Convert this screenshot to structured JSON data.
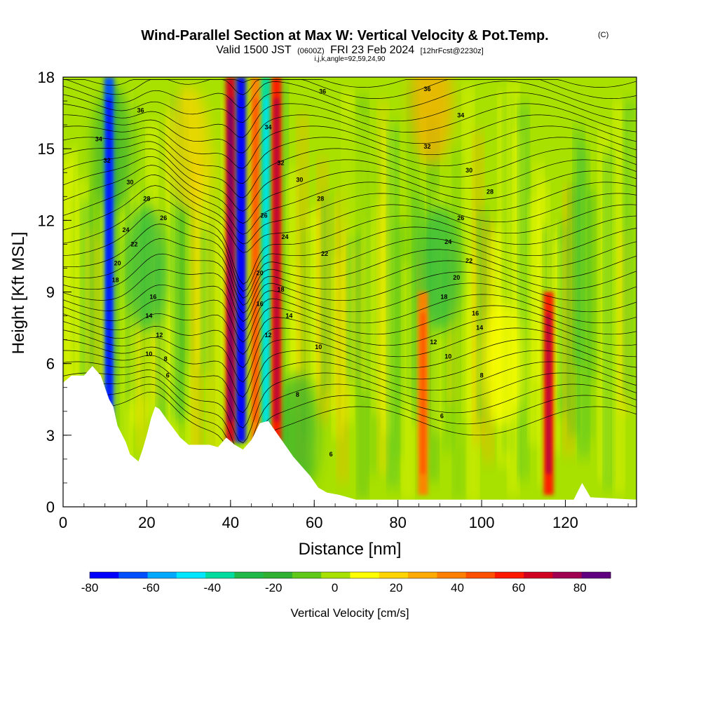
{
  "header": {
    "title": "Wind-Parallel Section at Max W: Vertical Velocity & Pot.Temp.",
    "copyright": "(C)",
    "valid_prefix": "Valid 1500 JST",
    "valid_utc": "(0600Z)",
    "valid_date": "FRI 23 Feb 2024",
    "forecast": "[12hrFcst@2230z]",
    "indices": "i,j,k,angle=92,59,24,90"
  },
  "chart_data": {
    "type": "heatmap",
    "xlabel": "Distance [nm]",
    "ylabel": "Height [Kft MSL]",
    "xlim": [
      0,
      137
    ],
    "ylim": [
      0,
      18
    ],
    "x_ticks": [
      0,
      20,
      40,
      60,
      80,
      100,
      120
    ],
    "y_ticks": [
      0,
      3,
      6,
      9,
      12,
      15,
      18
    ],
    "colorbar": {
      "title": "Vertical Velocity [cm/s]",
      "range": [
        -80,
        90
      ],
      "tick_values": [
        -80,
        -60,
        -40,
        -20,
        0,
        20,
        40,
        60,
        80
      ],
      "colors": [
        "#0000ff",
        "#0050ff",
        "#00a8ff",
        "#00e6ff",
        "#00dca0",
        "#20b848",
        "#30b030",
        "#60c818",
        "#a8e000",
        "#ffff00",
        "#ffd400",
        "#ffaa00",
        "#ff8000",
        "#ff5000",
        "#ff1800",
        "#d00020",
        "#a00050",
        "#600080"
      ]
    },
    "terrain_kft": [
      [
        0,
        5.2
      ],
      [
        2,
        5.5
      ],
      [
        5,
        5.5
      ],
      [
        7,
        5.9
      ],
      [
        9,
        5.5
      ],
      [
        11,
        4.5
      ],
      [
        12,
        4.2
      ],
      [
        13,
        3.4
      ],
      [
        15,
        2.7
      ],
      [
        16,
        2.2
      ],
      [
        18,
        1.9
      ],
      [
        19,
        2.4
      ],
      [
        20,
        3.0
      ],
      [
        21,
        3.7
      ],
      [
        22,
        4.2
      ],
      [
        23,
        4.1
      ],
      [
        25,
        3.6
      ],
      [
        28,
        2.9
      ],
      [
        30,
        2.6
      ],
      [
        35,
        2.6
      ],
      [
        37,
        2.5
      ],
      [
        39,
        2.9
      ],
      [
        41,
        2.6
      ],
      [
        43,
        2.4
      ],
      [
        45,
        2.8
      ],
      [
        47,
        3.5
      ],
      [
        49,
        3.6
      ],
      [
        51,
        3.1
      ],
      [
        53,
        2.6
      ],
      [
        55,
        2.1
      ],
      [
        57,
        1.7
      ],
      [
        59,
        1.3
      ],
      [
        61,
        0.8
      ],
      [
        63,
        0.6
      ],
      [
        66,
        0.5
      ],
      [
        70,
        0.3
      ],
      [
        122,
        0.3
      ],
      [
        124,
        1.0
      ],
      [
        126,
        0.4
      ],
      [
        137,
        0.3
      ]
    ],
    "convective_features": [
      {
        "x": 11,
        "w": -70
      },
      {
        "x": 40,
        "w": 70
      },
      {
        "x": 42.5,
        "w": -80
      },
      {
        "x": 46,
        "w": 35
      },
      {
        "x": 48.5,
        "w": -40
      },
      {
        "x": 51,
        "w": 60
      },
      {
        "x": 86,
        "w": 35
      },
      {
        "x": 116,
        "w": 60
      }
    ],
    "isentropes": {
      "units": "theta offset labels",
      "levels": [
        6,
        8,
        10,
        12,
        14,
        16,
        18,
        20,
        22,
        24,
        26,
        28,
        30,
        32,
        34,
        36
      ],
      "labels": [
        {
          "text": "36",
          "x": 18.5,
          "y": 16.6
        },
        {
          "text": "34",
          "x": 8.5,
          "y": 15.4
        },
        {
          "text": "32",
          "x": 10.5,
          "y": 14.5
        },
        {
          "text": "30",
          "x": 16,
          "y": 13.6
        },
        {
          "text": "28",
          "x": 20,
          "y": 12.9
        },
        {
          "text": "26",
          "x": 24,
          "y": 12.1
        },
        {
          "text": "24",
          "x": 15,
          "y": 11.6
        },
        {
          "text": "22",
          "x": 17,
          "y": 11.0
        },
        {
          "text": "20",
          "x": 13,
          "y": 10.2
        },
        {
          "text": "18",
          "x": 12.5,
          "y": 9.5
        },
        {
          "text": "16",
          "x": 21.5,
          "y": 8.8
        },
        {
          "text": "14",
          "x": 20.5,
          "y": 8.0
        },
        {
          "text": "12",
          "x": 23,
          "y": 7.2
        },
        {
          "text": "10",
          "x": 20.5,
          "y": 6.4
        },
        {
          "text": "8",
          "x": 24.5,
          "y": 6.2
        },
        {
          "text": "6",
          "x": 25,
          "y": 5.5
        },
        {
          "text": "34",
          "x": 49,
          "y": 15.9
        },
        {
          "text": "36",
          "x": 62,
          "y": 17.4
        },
        {
          "text": "32",
          "x": 52,
          "y": 14.4
        },
        {
          "text": "30",
          "x": 56.5,
          "y": 13.7
        },
        {
          "text": "28",
          "x": 61.5,
          "y": 12.9
        },
        {
          "text": "26",
          "x": 48,
          "y": 12.2
        },
        {
          "text": "24",
          "x": 53,
          "y": 11.3
        },
        {
          "text": "22",
          "x": 62.5,
          "y": 10.6
        },
        {
          "text": "20",
          "x": 47,
          "y": 9.8
        },
        {
          "text": "18",
          "x": 52,
          "y": 9.1
        },
        {
          "text": "16",
          "x": 47,
          "y": 8.5
        },
        {
          "text": "14",
          "x": 54,
          "y": 8.0
        },
        {
          "text": "12",
          "x": 49,
          "y": 7.2
        },
        {
          "text": "10",
          "x": 61,
          "y": 6.7
        },
        {
          "text": "8",
          "x": 56,
          "y": 4.7
        },
        {
          "text": "6",
          "x": 64,
          "y": 2.2
        },
        {
          "text": "36",
          "x": 87,
          "y": 17.5
        },
        {
          "text": "34",
          "x": 95,
          "y": 16.4
        },
        {
          "text": "32",
          "x": 87,
          "y": 15.1
        },
        {
          "text": "30",
          "x": 97,
          "y": 14.1
        },
        {
          "text": "28",
          "x": 102,
          "y": 13.2
        },
        {
          "text": "26",
          "x": 95,
          "y": 12.1
        },
        {
          "text": "24",
          "x": 92,
          "y": 11.1
        },
        {
          "text": "22",
          "x": 97,
          "y": 10.3
        },
        {
          "text": "20",
          "x": 94,
          "y": 9.6
        },
        {
          "text": "18",
          "x": 91,
          "y": 8.8
        },
        {
          "text": "16",
          "x": 98.5,
          "y": 8.1
        },
        {
          "text": "14",
          "x": 99.5,
          "y": 7.5
        },
        {
          "text": "12",
          "x": 88.5,
          "y": 6.9
        },
        {
          "text": "10",
          "x": 92,
          "y": 6.3
        },
        {
          "text": "8",
          "x": 100,
          "y": 5.5
        },
        {
          "text": "6",
          "x": 90.5,
          "y": 3.8
        }
      ]
    }
  }
}
